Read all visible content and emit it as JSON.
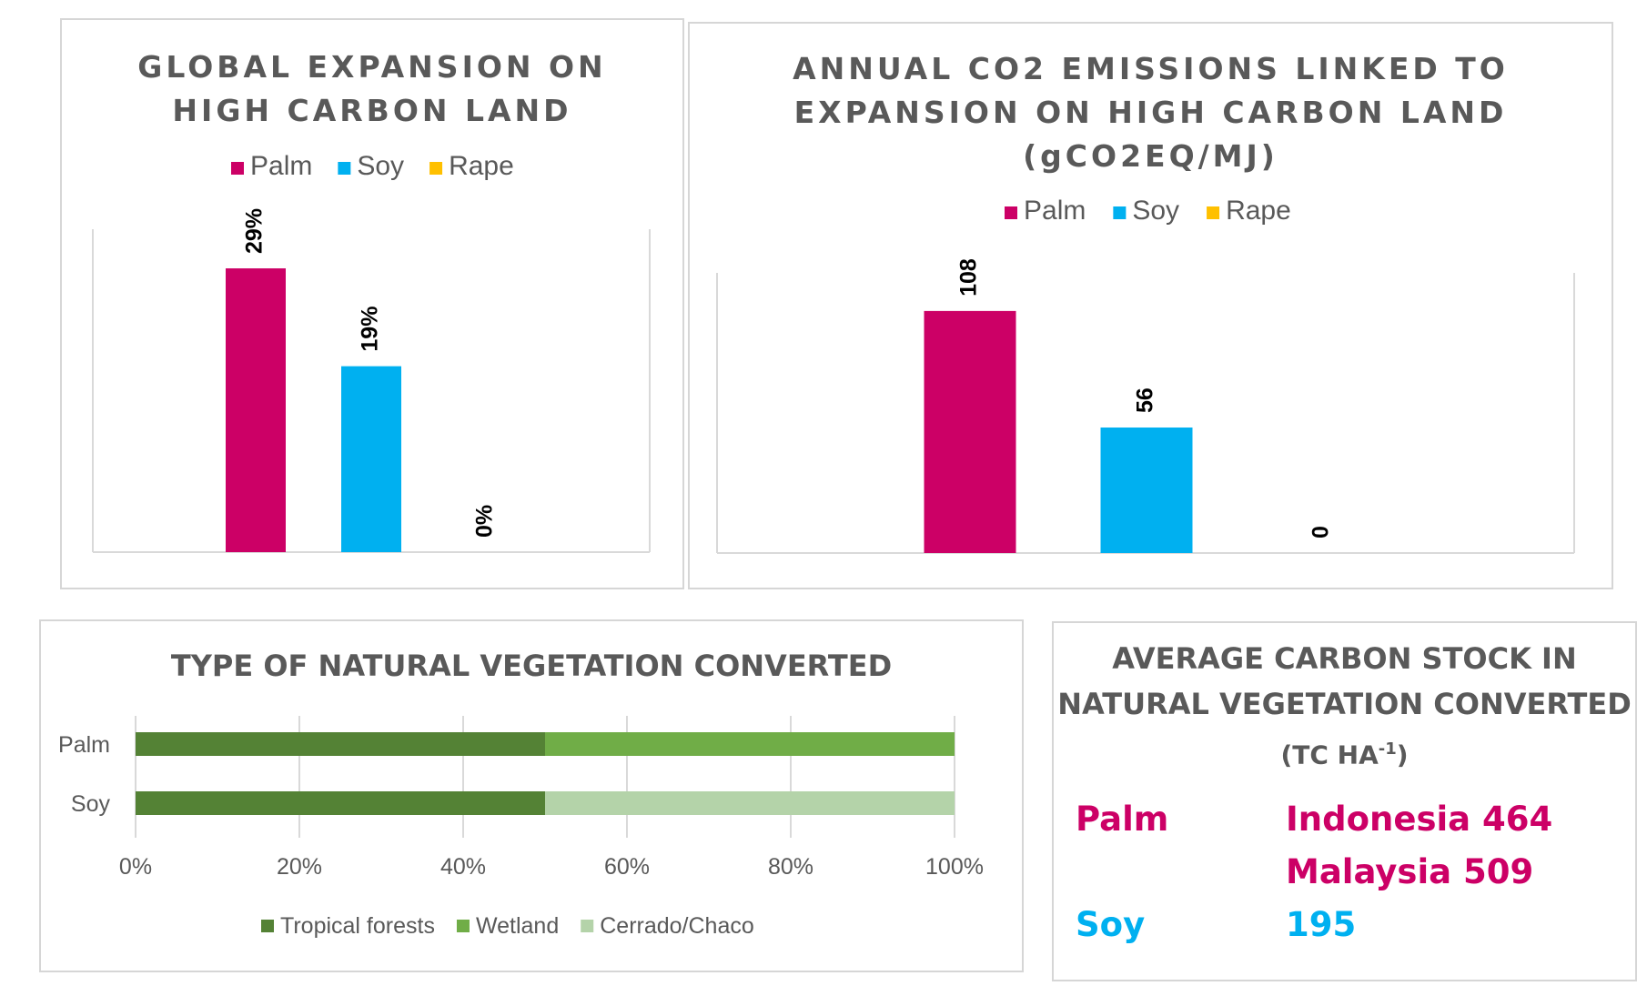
{
  "colors": {
    "palm": "#cc0066",
    "soy": "#00b0f0",
    "rape": "#ffc000",
    "tropical": "#548235",
    "wetland": "#70ad47",
    "cerrado": "#b4d3a9",
    "title_text": "#595959",
    "axis_text": "#595959"
  },
  "panel1": {
    "title_line1": "GLOBAL EXPANSION ON",
    "title_line2": "HIGH CARBON LAND"
  },
  "panel2": {
    "title_line1": "ANNUAL CO2 EMISSIONS LINKED TO",
    "title_line2": "EXPANSION ON HIGH CARBON LAND",
    "title_line3": "(gCO2EQ/MJ)"
  },
  "panel3": {
    "title": "TYPE OF NATURAL VEGETATION CONVERTED"
  },
  "panel4": {
    "title_line1": "AVERAGE CARBON STOCK IN",
    "title_line2": "NATURAL VEGETATION CONVERTED",
    "title_line3_prefix": "(TC HA",
    "title_line3_sup": "-1",
    "title_line3_suffix": ")",
    "palm_label": "Palm",
    "palm_value1": "Indonesia 464",
    "palm_value2": "Malaysia 509",
    "soy_label": "Soy",
    "soy_value": "195"
  },
  "chart_data": [
    {
      "type": "bar",
      "title": "GLOBAL EXPANSION ON HIGH CARBON LAND",
      "series": [
        {
          "name": "Palm",
          "value": 29,
          "label": "29%"
        },
        {
          "name": "Soy",
          "value": 19,
          "label": "19%"
        },
        {
          "name": "Rape",
          "value": 0,
          "label": "0%"
        }
      ],
      "unit": "%",
      "ylim": [
        0,
        33
      ],
      "legend": "top",
      "grid": false
    },
    {
      "type": "bar",
      "title": "ANNUAL CO2 EMISSIONS LINKED TO EXPANSION ON HIGH CARBON LAND (gCO2EQ/MJ)",
      "series": [
        {
          "name": "Palm",
          "value": 108,
          "label": "108"
        },
        {
          "name": "Soy",
          "value": 56,
          "label": "56"
        },
        {
          "name": "Rape",
          "value": 0,
          "label": "0"
        }
      ],
      "ylim": [
        0,
        125
      ],
      "legend": "top",
      "grid": false
    },
    {
      "type": "bar",
      "orientation": "horizontal",
      "stacked": "100%",
      "title": "TYPE OF NATURAL VEGETATION CONVERTED",
      "categories": [
        "Palm",
        "Soy"
      ],
      "series": [
        {
          "name": "Tropical forests",
          "values": [
            50,
            50
          ]
        },
        {
          "name": "Wetland",
          "values": [
            50,
            0
          ]
        },
        {
          "name": "Cerrado/Chaco",
          "values": [
            0,
            50
          ]
        }
      ],
      "xticks": [
        "0%",
        "20%",
        "40%",
        "60%",
        "80%",
        "100%"
      ],
      "xlim": [
        0,
        100
      ],
      "legend": "bottom",
      "grid": true
    }
  ]
}
